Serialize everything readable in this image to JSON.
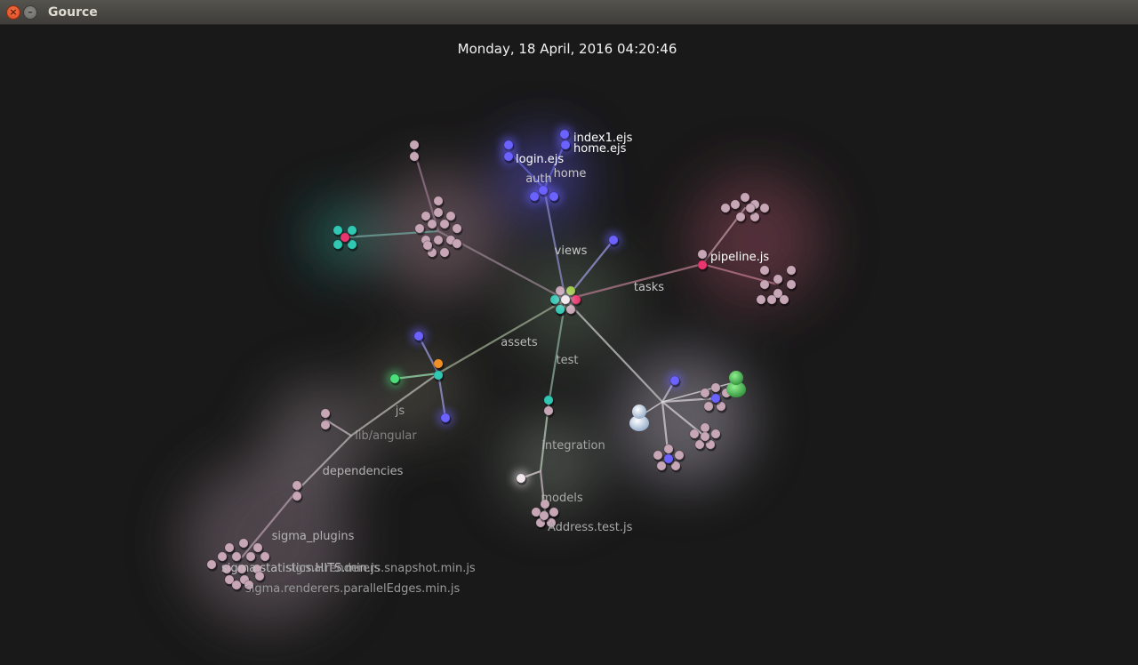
{
  "window": {
    "title": "Gource",
    "close_glyph": "×",
    "minimize_glyph": "–"
  },
  "date_label": "Monday, 18 April, 2016 04:20:46",
  "colors": {
    "background": "#191919",
    "pink_file": "#c7a6b6",
    "teal_file": "#30c7b3",
    "blue_file": "#6b62ff",
    "red_file": "#e8366e",
    "green_file": "#4be07a",
    "orange_file": "#f08f27",
    "white_file": "#f2e8ee",
    "user_green": "#55c95c",
    "user_blue": "#c7d9ee"
  },
  "dir_labels": [
    {
      "id": "views",
      "text": "views"
    },
    {
      "id": "auth",
      "text": "auth"
    },
    {
      "id": "home",
      "text": "home"
    },
    {
      "id": "tasks",
      "text": "tasks"
    },
    {
      "id": "assets",
      "text": "assets"
    },
    {
      "id": "test",
      "text": "test"
    },
    {
      "id": "js",
      "text": "js"
    },
    {
      "id": "lib-angular",
      "text": "lib/angular"
    },
    {
      "id": "dependencies",
      "text": "dependencies"
    },
    {
      "id": "integration",
      "text": "integration"
    },
    {
      "id": "models",
      "text": "models"
    },
    {
      "id": "sigma-plugins",
      "text": "sigma_plugins"
    }
  ],
  "file_labels": [
    {
      "id": "index1-ejs",
      "text": "index1.ejs"
    },
    {
      "id": "home-ejs",
      "text": "home.ejs"
    },
    {
      "id": "login-ejs",
      "text": "login.ejs"
    },
    {
      "id": "pipeline-js",
      "text": "pipeline.js"
    },
    {
      "id": "address-test-js",
      "text": "Address.test.js"
    },
    {
      "id": "sigma-statistics",
      "text": "sigma.statistics.HITS.min.js"
    },
    {
      "id": "sigma-snapshot",
      "text": "sigma.renderers.snapshot.min.js"
    },
    {
      "id": "sigma-parallel",
      "text": "sigma.renderers.parallelEdges.min.js"
    }
  ],
  "users": [
    {
      "id": "user-green",
      "color": "green"
    },
    {
      "id": "user-blue",
      "color": "blue"
    }
  ]
}
